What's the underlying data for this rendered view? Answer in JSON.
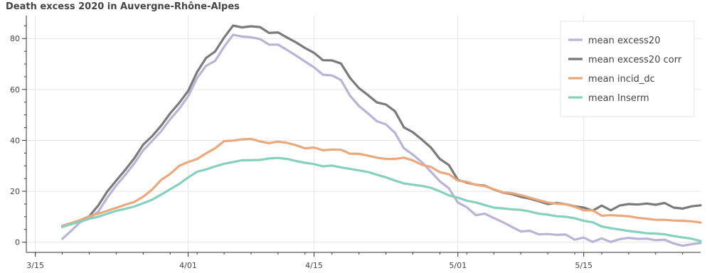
{
  "chart_data": {
    "type": "line",
    "title": "Death excess 2020 in Auvergne-Rhône-Alpes",
    "xlabel": "",
    "ylabel": "",
    "x_start": "2020-03-18",
    "x_end": "2020-05-28",
    "x_ticks": [
      {
        "label": "3/15",
        "date": "2020-03-15"
      },
      {
        "label": "4/01",
        "date": "2020-04-01"
      },
      {
        "label": "4/15",
        "date": "2020-04-15"
      },
      {
        "label": "5/01",
        "date": "2020-05-01"
      },
      {
        "label": "5/15",
        "date": "2020-05-15"
      }
    ],
    "y_ticks": [
      0,
      20,
      40,
      60,
      80
    ],
    "xlim": [
      "2020-03-14",
      "2020-05-28"
    ],
    "ylim": [
      -4,
      89
    ],
    "grid": true,
    "legend_position": "top-right",
    "series": [
      {
        "name": "mean excess20",
        "color": "#b8b4d8",
        "values": [
          1.3,
          4.5,
          7.9,
          9.4,
          12,
          17.5,
          22.3,
          26.4,
          30.9,
          36.1,
          39.8,
          43.6,
          48.3,
          52.4,
          57.3,
          64.6,
          69.3,
          71.2,
          76.8,
          81.5,
          80.8,
          80.5,
          79.8,
          77.6,
          77.6,
          75.5,
          73.3,
          71,
          68.7,
          65.8,
          65.5,
          63.7,
          57.6,
          53.5,
          50.6,
          47.5,
          46.3,
          43,
          36.9,
          34.4,
          31.4,
          27.7,
          23.9,
          21.2,
          15.6,
          13.7,
          10.6,
          11.2,
          9.5,
          7.9,
          6,
          4.2,
          4.5,
          3.1,
          3.2,
          2.9,
          3,
          1,
          1.8,
          0.1,
          1.5,
          0.1,
          1.2,
          1.7,
          1.3,
          1.4,
          0.8,
          1,
          -0.5,
          -1.4,
          -0.8,
          -0.3
        ]
      },
      {
        "name": "mean excess20 corr",
        "color": "#7a7a7a",
        "values": [
          6,
          7.5,
          8.6,
          10.2,
          14.4,
          19.9,
          24.2,
          28.4,
          32.9,
          38.3,
          41.7,
          45.8,
          50.6,
          54.7,
          59.4,
          66.9,
          72.4,
          74.9,
          80.4,
          85.1,
          84.4,
          84.8,
          84.5,
          82.2,
          82.4,
          80.4,
          78.5,
          76.3,
          74.4,
          71.5,
          71.4,
          70.2,
          64.6,
          60.5,
          57.8,
          54.9,
          54.1,
          51.5,
          45.1,
          43.2,
          40.3,
          37.2,
          32.7,
          30.3,
          24.5,
          23.4,
          22.6,
          22.2,
          20.7,
          19.5,
          18.9,
          17.8,
          17.1,
          16.1,
          15,
          15.4,
          14.9,
          14.1,
          13.6,
          12.4,
          14.4,
          12.5,
          14.4,
          15,
          14.8,
          15.2,
          14.7,
          15.4,
          13.6,
          13.2,
          14.1,
          14.5
        ]
      },
      {
        "name": "mean incid_dc",
        "color": "#eba87a",
        "values": [
          6.5,
          7.5,
          8.7,
          10.2,
          11.2,
          12.3,
          13.5,
          14.7,
          15.8,
          17.9,
          20.7,
          24.5,
          26.8,
          30,
          31.5,
          32.7,
          34.9,
          36.9,
          39.7,
          39.9,
          40.4,
          40.6,
          39.6,
          38.9,
          39.5,
          39,
          38.1,
          36.9,
          37.2,
          36.1,
          36.4,
          36.3,
          34.8,
          34.7,
          34,
          33.2,
          32.7,
          32.7,
          33.2,
          32.1,
          30.4,
          29.6,
          27.5,
          26.7,
          24.2,
          23.7,
          22.5,
          22,
          20.8,
          19.6,
          19.3,
          18.5,
          17.5,
          16.5,
          15.6,
          15.1,
          14.9,
          13.9,
          12.5,
          12.5,
          10.4,
          10.6,
          10.4,
          10.2,
          9.6,
          9.2,
          8.8,
          8.8,
          8.5,
          8.4,
          8.2,
          7.7
        ]
      },
      {
        "name": "mean Inserm",
        "color": "#86d1bd",
        "values": [
          6,
          7.1,
          8.1,
          9.2,
          10,
          11.2,
          12.3,
          13.1,
          14,
          15.3,
          16.7,
          18.7,
          20.8,
          22.9,
          25.4,
          27.7,
          28.6,
          29.8,
          30.8,
          31.5,
          32.2,
          32.2,
          32.3,
          32.9,
          33.1,
          32.7,
          31.9,
          31.2,
          30.7,
          29.8,
          30.1,
          29.4,
          28.8,
          28.2,
          27.6,
          26.5,
          25.5,
          24.2,
          23.1,
          22.6,
          22.1,
          21.4,
          20,
          18.4,
          17.5,
          16.3,
          15.6,
          14.6,
          13.6,
          13.3,
          12.9,
          12.7,
          12.1,
          11.2,
          10.8,
          10.2,
          10,
          9.4,
          8.4,
          7.8,
          6.2,
          5.5,
          5,
          4.4,
          4,
          3.5,
          3.4,
          3.1,
          2.4,
          1.9,
          1.4,
          0.4
        ]
      }
    ]
  }
}
